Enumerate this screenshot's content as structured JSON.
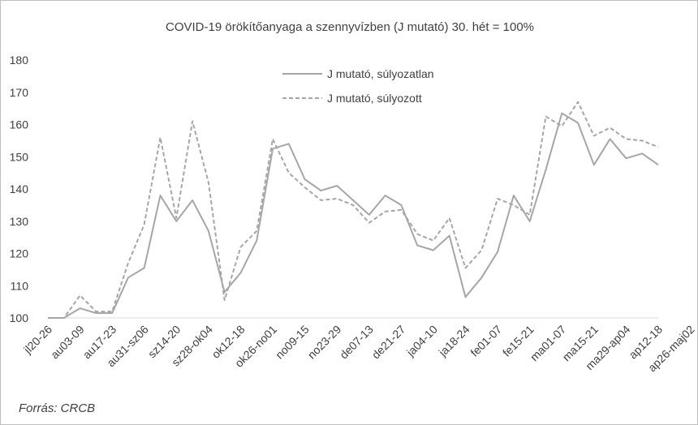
{
  "chart_data": {
    "type": "line",
    "title": "COVID-19 örökítőanyaga a szennyvízben (J mutató) 30. hét = 100%",
    "xlabel": "",
    "ylabel": "",
    "ylim": [
      100,
      180
    ],
    "yticks": [
      100,
      110,
      120,
      130,
      140,
      150,
      160,
      170,
      180
    ],
    "grid": false,
    "legend_position": "top-center",
    "x_tick_labels": [
      "jl20-26",
      "au03-09",
      "au17-23",
      "au31-sz06",
      "sz14-20",
      "sz28-ok04",
      "ok12-18",
      "ok26-no01",
      "no09-15",
      "no23-29",
      "de07-13",
      "de21-27",
      "ja04-10",
      "ja18-24",
      "fe01-07",
      "fe15-21",
      "ma01-07",
      "ma15-21",
      "ma29-ap04",
      "ap12-18",
      "ap26-maj02"
    ],
    "series": [
      {
        "name": "J mutató, súlyozatlan",
        "style": "solid",
        "color": "#a6a6a6",
        "values": [
          100,
          100,
          103,
          101.5,
          101.5,
          112.5,
          115.5,
          138,
          130,
          136.5,
          127,
          108,
          114,
          124,
          152.5,
          154,
          143,
          139.5,
          141,
          136.5,
          132,
          138,
          135,
          122.5,
          121,
          125.5,
          106.5,
          112.5,
          120.5,
          138,
          130,
          146,
          163.5,
          160.5,
          147.5,
          155.5,
          149.5,
          151,
          147.5
        ]
      },
      {
        "name": "J mutató, súlyozott",
        "style": "dashed",
        "color": "#a6a6a6",
        "values": [
          100,
          100,
          107,
          102,
          102,
          117,
          129,
          156,
          131,
          161,
          142,
          105.5,
          122,
          127,
          155.5,
          145,
          140.5,
          136.5,
          137,
          135,
          129.5,
          133,
          133.5,
          126,
          124,
          131,
          115.5,
          121,
          137,
          135,
          132,
          162.5,
          159.5,
          167,
          156.5,
          159,
          155.5,
          155,
          153
        ]
      }
    ]
  },
  "source_note": "Forrás: CRCB"
}
